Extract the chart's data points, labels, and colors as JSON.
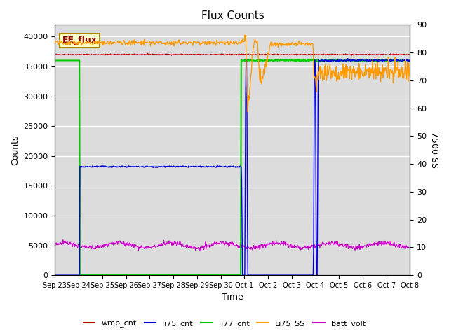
{
  "title": "Flux Counts",
  "ylabel_left": "Counts",
  "ylabel_right": "7500 SS",
  "xlabel": "Time",
  "annotation_text": "EE_flux",
  "x_tick_labels": [
    "Sep 23",
    "Sep 24",
    "Sep 25",
    "Sep 26",
    "Sep 27",
    "Sep 28",
    "Sep 29",
    "Sep 30",
    "Oct 1",
    "Oct 2",
    "Oct 3",
    "Oct 4",
    "Oct 5",
    "Oct 6",
    "Oct 7",
    "Oct 8"
  ],
  "ylim_left": [
    0,
    42000
  ],
  "ylim_right": [
    0,
    90
  ],
  "wmp_cnt_val": 37000,
  "li77_high": 36000,
  "li75_mid": 18200,
  "li75_high": 36000,
  "batt_base": 5000,
  "batt_amp": 400,
  "orange_base": 83.5,
  "orange_low": 73.0,
  "colors": {
    "wmp_cnt": "#cc0000",
    "li75_cnt": "#0000dd",
    "li77_cnt": "#00cc00",
    "Li75_SS": "#ff9900",
    "batt_volt": "#cc00cc"
  },
  "bg_color": "#dcdcdc"
}
